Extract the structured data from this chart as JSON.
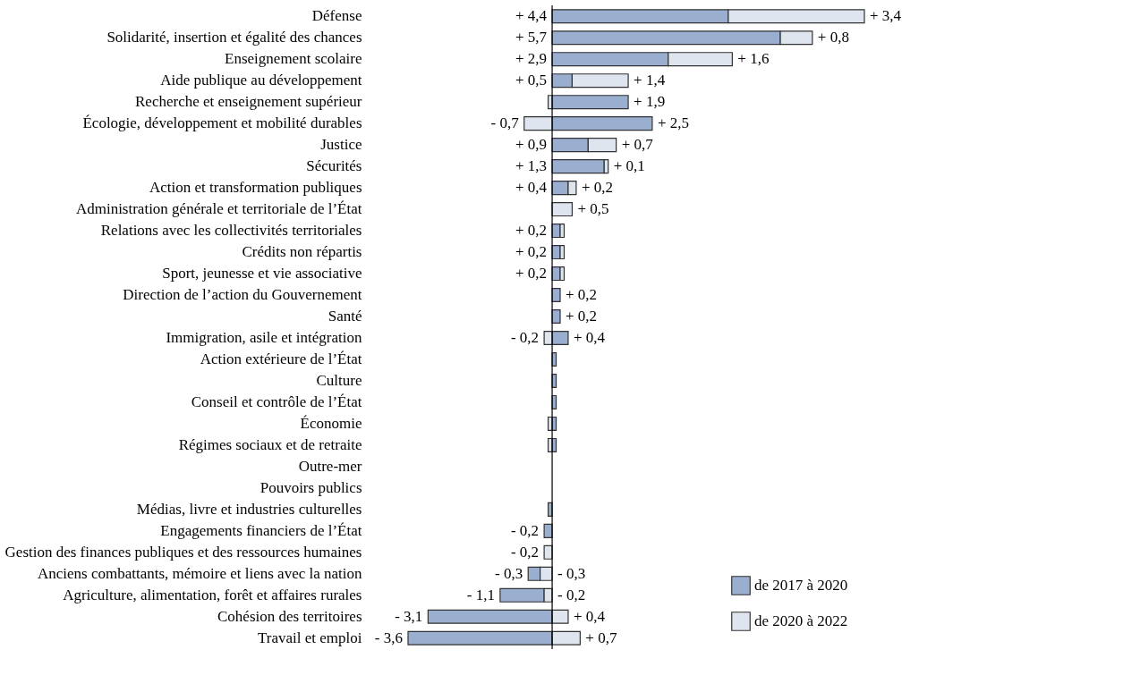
{
  "chart_data": {
    "type": "bar",
    "orientation": "horizontal",
    "stacked": true,
    "categories": [
      "Défense",
      "Solidarité, insertion et égalité des chances",
      "Enseignement scolaire",
      "Aide publique au développement",
      "Recherche et enseignement supérieur",
      "Écologie, développement et mobilité durables",
      "Justice",
      "Sécurités",
      "Action et transformation publiques",
      "Administration générale et territoriale de l’État",
      "Relations avec les collectivités territoriales",
      "Crédits non répartis",
      "Sport, jeunesse et vie associative",
      "Direction de l’action du Gouvernement",
      "Santé",
      "Immigration, asile et intégration",
      "Action extérieure de l’État",
      "Culture",
      "Conseil et contrôle de l’État",
      "Économie",
      "Régimes sociaux et de retraite",
      "Outre-mer",
      "Pouvoirs publics",
      "Médias, livre et industries culturelles",
      "Engagements financiers de l’État",
      "Gestion des finances publiques et des ressources humaines",
      "Anciens combattants, mémoire et liens avec la nation",
      "Agriculture, alimentation, forêt et affaires rurales",
      "Cohésion des territoires",
      "Travail et emploi"
    ],
    "series": [
      {
        "name": "de 2017 à 2020",
        "color": "#9aaecf",
        "values": [
          4.4,
          5.7,
          2.9,
          0.5,
          1.9,
          2.5,
          0.9,
          1.3,
          0.4,
          null,
          0.2,
          0.2,
          0.2,
          0.2,
          0.2,
          0.4,
          0.1,
          0.1,
          0.1,
          0.1,
          0.1,
          null,
          null,
          -0.1,
          -0.2,
          null,
          -0.3,
          -1.1,
          -3.1,
          -3.6
        ],
        "value_labels": [
          "+ 4,4",
          "+ 5,7",
          "+ 2,9",
          "+ 0,5",
          "+ 1,9",
          "+ 2,5",
          "+ 0,9",
          "+ 1,3",
          "+ 0,4",
          null,
          "+ 0,2",
          "+ 0,2",
          "+ 0,2",
          "+ 0,2",
          "+ 0,2",
          "+ 0,4",
          null,
          null,
          null,
          null,
          null,
          null,
          null,
          null,
          "- 0,2",
          null,
          "- 0,3",
          "- 1,1",
          "- 3,1",
          "- 3,6"
        ]
      },
      {
        "name": "de 2020 à 2022",
        "color": "#dfe5ef",
        "values": [
          3.4,
          0.8,
          1.6,
          1.4,
          -0.1,
          -0.7,
          0.7,
          0.1,
          0.2,
          0.5,
          0.1,
          0.1,
          0.1,
          null,
          null,
          -0.2,
          null,
          null,
          null,
          -0.1,
          -0.1,
          null,
          null,
          null,
          null,
          -0.2,
          -0.3,
          -0.2,
          0.4,
          0.7
        ],
        "value_labels": [
          "+ 3,4",
          "+ 0,8",
          "+ 1,6",
          "+ 1,4",
          null,
          "- 0,7",
          "+ 0,7",
          "+ 0,1",
          "+ 0,2",
          "+ 0,5",
          null,
          null,
          null,
          null,
          null,
          "- 0,2",
          null,
          null,
          null,
          null,
          null,
          null,
          null,
          null,
          null,
          "- 0,2",
          "- 0,3",
          "- 0,2",
          "+ 0,4",
          "+ 0,7"
        ]
      }
    ],
    "ref_lines": [
      {
        "axis": "x",
        "value": 0
      }
    ],
    "legend": "bottom right"
  }
}
